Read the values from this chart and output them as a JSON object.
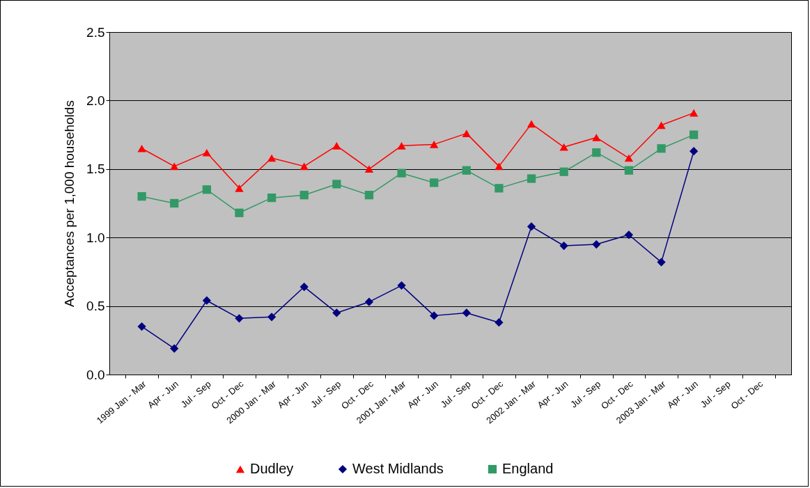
{
  "chart_data": {
    "type": "line",
    "ylabel": "Acceptances per 1,000 households",
    "categories": [
      "1999 Jan - Mar",
      "Apr - Jun",
      "Jul - Sep",
      "Oct - Dec",
      "2000 Jan - Mar",
      "Apr - Jun",
      "Jul - Sep",
      "Oct - Dec",
      "2001 Jan - Mar",
      "Apr - Jun",
      "Jul - Sep",
      "Oct - Dec",
      "2002 Jan - Mar",
      "Apr - Jun",
      "Jul - Sep",
      "Oct - Dec",
      "2003 Jan - Mar",
      "Apr - Jun",
      "Jul - Sep",
      "Oct - Dec"
    ],
    "series": [
      {
        "name": "Dudley",
        "color": "#ff0000",
        "marker": "triangle",
        "values": [
          1.65,
          1.52,
          1.62,
          1.36,
          1.58,
          1.52,
          1.67,
          1.5,
          1.67,
          1.68,
          1.76,
          1.52,
          1.83,
          1.66,
          1.73,
          1.58,
          1.82,
          1.91,
          null,
          null
        ]
      },
      {
        "name": "West Midlands",
        "color": "#000080",
        "marker": "diamond",
        "values": [
          0.35,
          0.19,
          0.54,
          0.41,
          0.42,
          0.64,
          0.45,
          0.53,
          0.65,
          0.43,
          0.45,
          0.38,
          1.08,
          0.94,
          0.95,
          1.02,
          0.82,
          1.63,
          null,
          null
        ]
      },
      {
        "name": "England",
        "color": "#339966",
        "marker": "square",
        "values": [
          1.3,
          1.25,
          1.35,
          1.18,
          1.29,
          1.31,
          1.39,
          1.31,
          1.47,
          1.4,
          1.49,
          1.36,
          1.43,
          1.48,
          1.62,
          1.49,
          1.65,
          1.75,
          null,
          null
        ]
      }
    ],
    "ylim": [
      0,
      2.5
    ],
    "yticks": [
      {
        "value": 0,
        "label": "0.0"
      },
      0.5,
      {
        "value": 1,
        "label": "1.0"
      },
      1.5,
      {
        "value": 2,
        "label": "2.0"
      },
      2.5
    ],
    "grid": "y",
    "legend": "bottom"
  }
}
